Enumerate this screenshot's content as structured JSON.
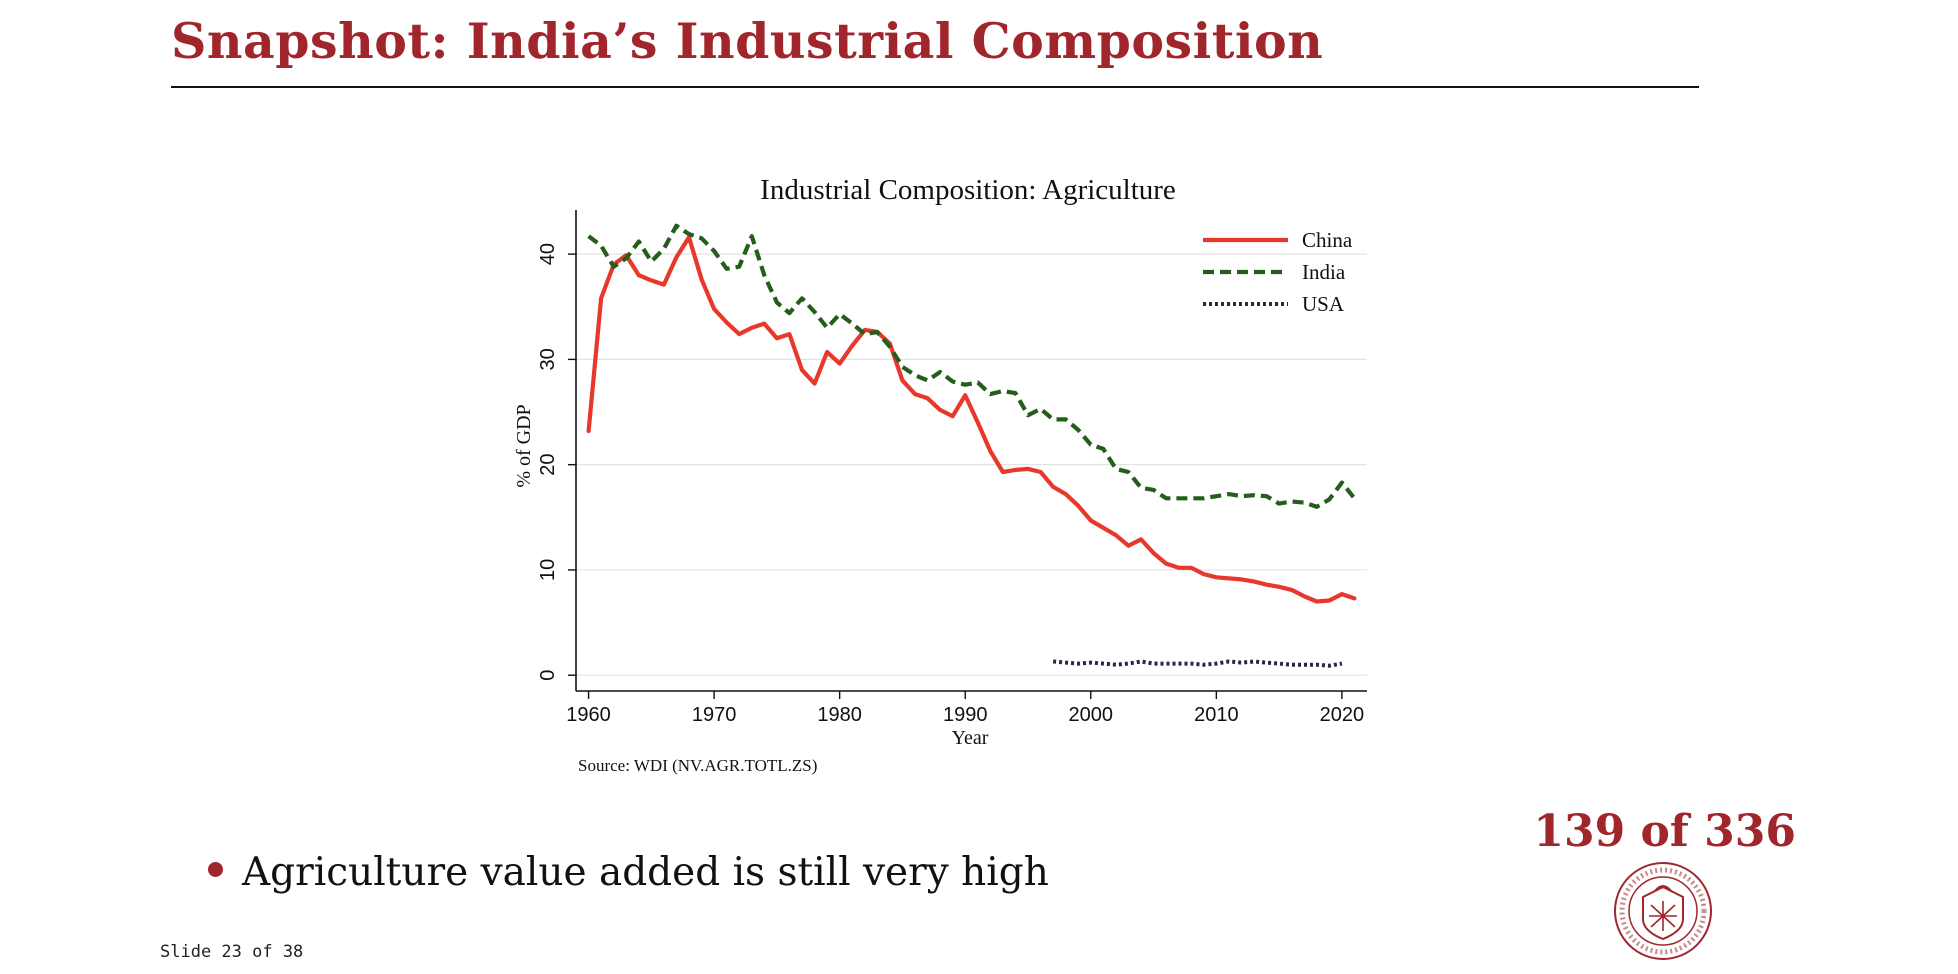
{
  "slide": {
    "title": "Snapshot: India’s Industrial Composition",
    "bullet": "Agriculture value added is still very high",
    "page_counter": "139 of 336",
    "footer": "Slide 23 of 38",
    "accent_color": "#a1262c"
  },
  "chart_data": {
    "type": "line",
    "title": "Industrial Composition: Agriculture",
    "xlabel": "Year",
    "ylabel": "% of GDP",
    "source": "Source: WDI (NV.AGR.TOTL.ZS)",
    "xlim": [
      1959,
      2022
    ],
    "ylim": [
      -1.5,
      44
    ],
    "x_ticks": [
      1960,
      1970,
      1980,
      1990,
      2000,
      2010,
      2020
    ],
    "y_ticks": [
      0,
      10,
      20,
      30,
      40
    ],
    "grid": true,
    "legend_position": "top-right",
    "series": [
      {
        "name": "China",
        "color": "#e8382b",
        "style": "solid",
        "x": [
          1960,
          1961,
          1962,
          1963,
          1964,
          1965,
          1966,
          1967,
          1968,
          1969,
          1970,
          1971,
          1972,
          1973,
          1974,
          1975,
          1976,
          1977,
          1978,
          1979,
          1980,
          1981,
          1982,
          1983,
          1984,
          1985,
          1986,
          1987,
          1988,
          1989,
          1990,
          1991,
          1992,
          1993,
          1994,
          1995,
          1996,
          1997,
          1998,
          1999,
          2000,
          2001,
          2002,
          2003,
          2004,
          2005,
          2006,
          2007,
          2008,
          2009,
          2010,
          2011,
          2012,
          2013,
          2014,
          2015,
          2016,
          2017,
          2018,
          2019,
          2020,
          2021
        ],
        "values": [
          23.2,
          35.8,
          39.0,
          39.9,
          38.0,
          37.5,
          37.1,
          39.7,
          41.6,
          37.6,
          34.8,
          33.5,
          32.4,
          33.0,
          33.4,
          32.0,
          32.4,
          29.0,
          27.7,
          30.7,
          29.6,
          31.3,
          32.8,
          32.6,
          31.5,
          28.0,
          26.7,
          26.3,
          25.2,
          24.6,
          26.6,
          24.0,
          21.3,
          19.3,
          19.5,
          19.6,
          19.3,
          17.9,
          17.2,
          16.1,
          14.7,
          14.0,
          13.3,
          12.3,
          12.9,
          11.6,
          10.6,
          10.2,
          10.2,
          9.6,
          9.3,
          9.2,
          9.1,
          8.9,
          8.6,
          8.4,
          8.1,
          7.5,
          7.0,
          7.1,
          7.7,
          7.3
        ]
      },
      {
        "name": "India",
        "color": "#245e1a",
        "style": "dashed",
        "x": [
          1960,
          1961,
          1962,
          1963,
          1964,
          1965,
          1966,
          1967,
          1968,
          1969,
          1970,
          1971,
          1972,
          1973,
          1974,
          1975,
          1976,
          1977,
          1978,
          1979,
          1980,
          1981,
          1982,
          1983,
          1984,
          1985,
          1986,
          1987,
          1988,
          1989,
          1990,
          1991,
          1992,
          1993,
          1994,
          1995,
          1996,
          1997,
          1998,
          1999,
          2000,
          2001,
          2002,
          2003,
          2004,
          2005,
          2006,
          2007,
          2008,
          2009,
          2010,
          2011,
          2012,
          2013,
          2014,
          2015,
          2016,
          2017,
          2018,
          2019,
          2020,
          2021
        ],
        "values": [
          41.7,
          40.8,
          38.8,
          39.6,
          41.2,
          39.3,
          40.5,
          42.7,
          41.9,
          41.5,
          40.3,
          38.6,
          38.8,
          41.7,
          38.0,
          35.4,
          34.4,
          35.8,
          34.5,
          33.0,
          34.3,
          33.4,
          32.4,
          32.6,
          31.2,
          29.3,
          28.5,
          28.0,
          28.8,
          27.9,
          27.6,
          27.8,
          26.7,
          27.0,
          26.8,
          24.7,
          25.3,
          24.3,
          24.3,
          23.3,
          21.9,
          21.5,
          19.6,
          19.3,
          17.8,
          17.6,
          16.8,
          16.8,
          16.8,
          16.8,
          17.0,
          17.2,
          17.0,
          17.1,
          17.0,
          16.3,
          16.5,
          16.4,
          16.0,
          16.7,
          18.3,
          16.8
        ]
      },
      {
        "name": "USA",
        "color": "#222846",
        "style": "dotted",
        "x": [
          1997,
          1998,
          1999,
          2000,
          2001,
          2002,
          2003,
          2004,
          2005,
          2006,
          2007,
          2008,
          2009,
          2010,
          2011,
          2012,
          2013,
          2014,
          2015,
          2016,
          2017,
          2018,
          2019,
          2020
        ],
        "values": [
          1.3,
          1.2,
          1.1,
          1.2,
          1.1,
          1.0,
          1.1,
          1.3,
          1.1,
          1.1,
          1.1,
          1.1,
          1.0,
          1.1,
          1.3,
          1.2,
          1.3,
          1.2,
          1.1,
          1.0,
          1.0,
          1.0,
          0.9,
          1.1
        ]
      }
    ]
  }
}
